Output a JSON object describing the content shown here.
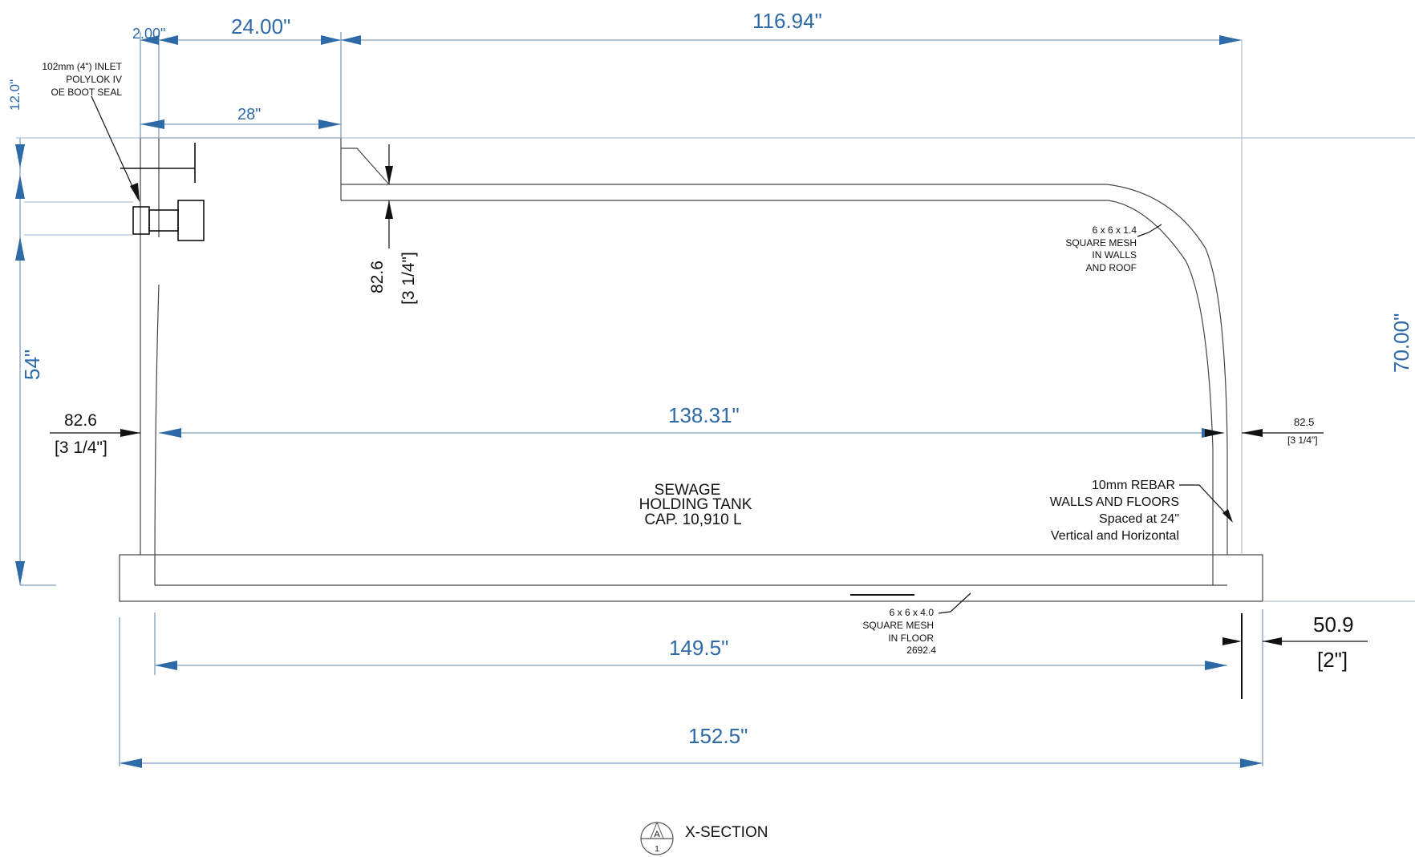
{
  "dimensions": {
    "d_2_00": "2.00\"",
    "d_24_00": "24.00\"",
    "d_116_94": "116.94\"",
    "d_28": "28\"",
    "d_12_0": "12.0\"",
    "d_54": "54\"",
    "d_70_00": "70.00\"",
    "d_138_31": "138.31\"",
    "d_149_5": "149.5\"",
    "d_152_5": "152.5\"",
    "left_wall_mm": "82.6",
    "left_wall_in": "[3 1/4\"]",
    "roof_mm": "82.6",
    "roof_in": "[3 1/4\"]",
    "right_wall_mm": "82.5",
    "right_wall_in": "[3 1/4\"]",
    "floor_mm": "50.9",
    "floor_in": "[2\"]"
  },
  "notes": {
    "inlet_line1": "102mm (4\") INLET",
    "inlet_line2": "POLYLOK IV",
    "inlet_line3": "OE BOOT SEAL",
    "roof_mesh_line1": "6 x 6 x 1.4",
    "roof_mesh_line2": "SQUARE MESH",
    "roof_mesh_line3": "IN WALLS",
    "roof_mesh_line4": "AND ROOF",
    "tank_line1": "SEWAGE",
    "tank_line2": "HOLDING TANK",
    "tank_line3": "CAP. 10,910 L",
    "rebar_line1": "10mm REBAR",
    "rebar_line2": "WALLS AND FLOORS",
    "rebar_line3": "Spaced at 24\"",
    "rebar_line4": "Vertical and Horizontal",
    "floor_mesh_line1": "6 x 6 x 4.0",
    "floor_mesh_line2": "SQUARE MESH",
    "floor_mesh_line3": "IN FLOOR",
    "floor_mesh_line4": "2692.4"
  },
  "section": {
    "title": "X-SECTION",
    "callout_top": "A",
    "callout_bottom": "1"
  },
  "colors": {
    "dimension_blue": "#2e6aa8",
    "line_black": "#111111"
  }
}
